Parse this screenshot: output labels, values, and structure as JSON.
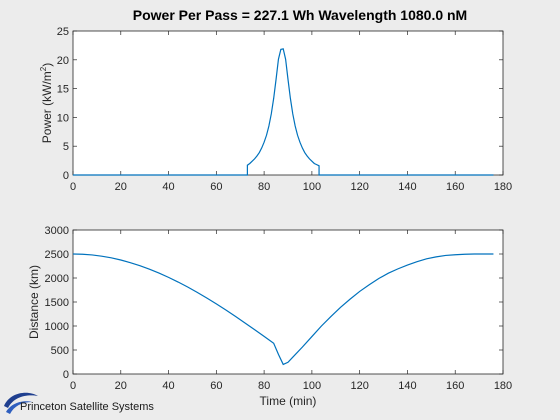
{
  "figure": {
    "title": "Power Per Pass = 227.1 Wh Wavelength 1080.0 nM",
    "logo_text": "Princeton Satellite Systems"
  },
  "chart_data": [
    {
      "type": "line",
      "title": "Power Per Pass = 227.1 Wh Wavelength 1080.0 nM",
      "xlabel": "",
      "ylabel_main": "Power (kW/m",
      "ylabel_sup": "2",
      "ylabel_tail": ")",
      "xlim": [
        0,
        180
      ],
      "ylim": [
        0,
        25
      ],
      "xticks": [
        0,
        20,
        40,
        60,
        80,
        100,
        120,
        140,
        160,
        180
      ],
      "yticks": [
        0,
        5,
        10,
        15,
        20,
        25
      ],
      "series": [
        {
          "color": "#0072bd",
          "x": [
            0,
            73,
            73,
            74,
            75,
            76,
            77,
            78,
            79,
            80,
            81,
            82,
            83,
            84,
            85,
            86,
            87,
            88,
            89,
            90,
            91,
            92,
            93,
            94,
            95,
            96,
            97,
            98,
            99,
            100,
            101,
            102,
            103,
            103,
            176
          ],
          "y": [
            0,
            0,
            1.7,
            2.0,
            2.4,
            2.8,
            3.3,
            3.9,
            4.7,
            5.7,
            6.9,
            8.5,
            10.6,
            13.3,
            16.6,
            20.1,
            21.8,
            21.9,
            20.1,
            16.6,
            13.3,
            10.6,
            8.5,
            6.9,
            5.7,
            4.7,
            3.9,
            3.3,
            2.8,
            2.4,
            2.0,
            1.8,
            1.6,
            0,
            0
          ]
        }
      ]
    },
    {
      "type": "line",
      "xlabel": "Time (min)",
      "ylabel": "Distance (km)",
      "xlim": [
        0,
        180
      ],
      "ylim": [
        0,
        3000
      ],
      "xticks": [
        0,
        20,
        40,
        60,
        80,
        100,
        120,
        140,
        160,
        180
      ],
      "yticks": [
        0,
        500,
        1000,
        1500,
        2000,
        2500,
        3000
      ],
      "series": [
        {
          "color": "#0072bd",
          "x": [
            0,
            4,
            8,
            12,
            16,
            20,
            24,
            28,
            32,
            36,
            40,
            44,
            48,
            52,
            56,
            60,
            64,
            68,
            72,
            76,
            80,
            84,
            86,
            88,
            90,
            92,
            96,
            100,
            104,
            108,
            112,
            116,
            120,
            124,
            128,
            132,
            136,
            140,
            144,
            148,
            152,
            156,
            160,
            164,
            168,
            172,
            176
          ],
          "y": [
            2500,
            2495,
            2480,
            2455,
            2420,
            2375,
            2320,
            2256,
            2183,
            2102,
            2013,
            1916,
            1812,
            1701,
            1584,
            1461,
            1333,
            1200,
            1063,
            924,
            783,
            640,
            410,
            200,
            245,
            350,
            560,
            780,
            1000,
            1200,
            1390,
            1560,
            1720,
            1860,
            1990,
            2100,
            2190,
            2270,
            2340,
            2400,
            2440,
            2470,
            2485,
            2495,
            2500,
            2500,
            2500
          ]
        }
      ]
    }
  ]
}
